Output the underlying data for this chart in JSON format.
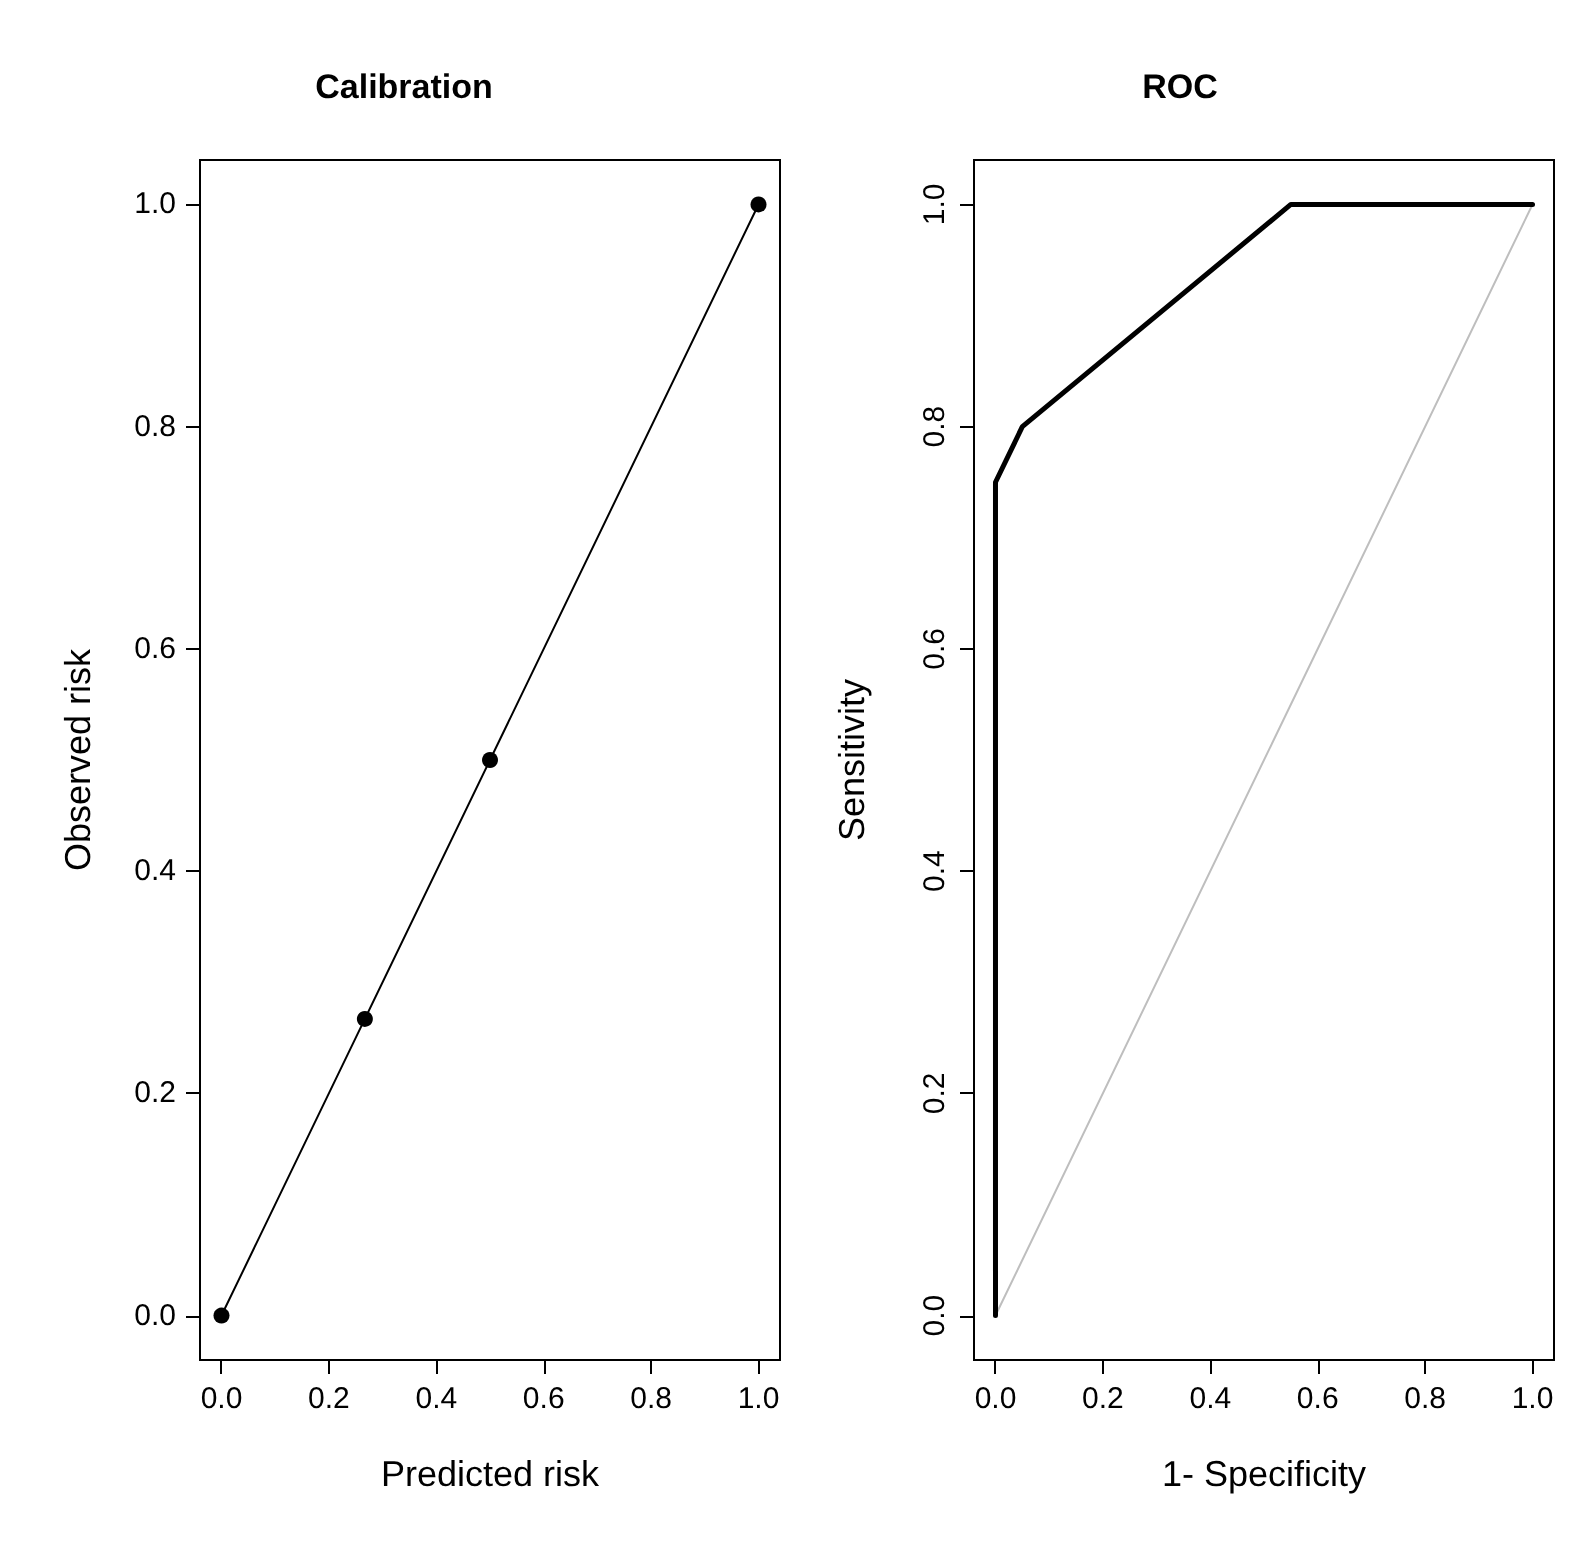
{
  "chart_data": [
    {
      "type": "line",
      "title": "Calibration",
      "xlabel": "Predicted risk",
      "ylabel": "Observed risk",
      "marker": "circle",
      "line_style": "solid",
      "grid": false,
      "xlim": [
        -0.04,
        1.04
      ],
      "ylim": [
        -0.04,
        1.04
      ],
      "xticks": [
        {
          "value": 0,
          "label": "0.0"
        },
        {
          "value": 0.2,
          "label": "0.2"
        },
        {
          "value": 0.4,
          "label": "0.4"
        },
        {
          "value": 0.6,
          "label": "0.6"
        },
        {
          "value": 0.8,
          "label": "0.8"
        },
        {
          "value": 1,
          "label": "1.0"
        }
      ],
      "yticks": [
        {
          "value": 0,
          "label": "0.0"
        },
        {
          "value": 0.2,
          "label": "0.2"
        },
        {
          "value": 0.4,
          "label": "0.4"
        },
        {
          "value": 0.6,
          "label": "0.6"
        },
        {
          "value": 0.8,
          "label": "0.8"
        },
        {
          "value": 1,
          "label": "1.0"
        }
      ],
      "series": [
        {
          "color": "#000000",
          "x": [
            0,
            0.267,
            0.5,
            1
          ],
          "values": [
            0,
            0.267,
            0.5,
            1
          ]
        }
      ]
    },
    {
      "type": "line",
      "title": "ROC",
      "xlabel": "1- Specificity",
      "ylabel": "Sensitivity",
      "marker": "none",
      "line_style": "solid",
      "grid": false,
      "xlim": [
        -0.04,
        1.04
      ],
      "ylim": [
        -0.04,
        1.04
      ],
      "xticks": [
        {
          "value": 0,
          "label": "0.0"
        },
        {
          "value": 0.2,
          "label": "0.2"
        },
        {
          "value": 0.4,
          "label": "0.4"
        },
        {
          "value": 0.6,
          "label": "0.6"
        },
        {
          "value": 0.8,
          "label": "0.8"
        },
        {
          "value": 1,
          "label": "1.0"
        }
      ],
      "yticks": [
        {
          "value": 0,
          "label": "0.0"
        },
        {
          "value": 0.2,
          "label": "0.2"
        },
        {
          "value": 0.4,
          "label": "0.4"
        },
        {
          "value": 0.6,
          "label": "0.6"
        },
        {
          "value": 0.8,
          "label": "0.8"
        },
        {
          "value": 1,
          "label": "1.0"
        }
      ],
      "series": [
        {
          "color": "#bebebe",
          "x": [
            0,
            1
          ],
          "values": [
            0,
            1
          ]
        },
        {
          "color": "#000000",
          "x": [
            0,
            0,
            0.05,
            0.55,
            1
          ],
          "values": [
            0,
            0.75,
            0.8,
            1,
            1
          ]
        }
      ]
    }
  ]
}
